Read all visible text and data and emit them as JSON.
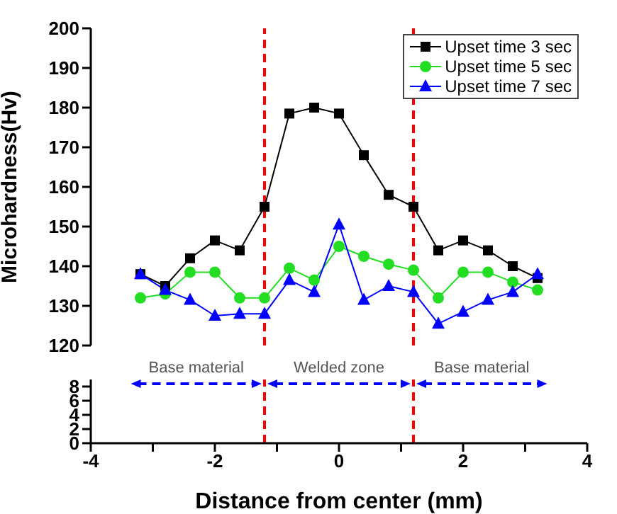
{
  "chart_data": [
    {
      "type": "line",
      "ylabel": "Microhardness(Hv)",
      "xlim": [
        -4,
        4
      ],
      "ylim": [
        120,
        200
      ],
      "yticks": [
        120,
        130,
        140,
        150,
        160,
        170,
        180,
        190,
        200
      ],
      "tick_labels": "y",
      "legend": "top right",
      "x": [
        -3.2,
        -2.8,
        -2.4,
        -2.0,
        -1.6,
        -1.2,
        -0.8,
        -0.4,
        0,
        0.4,
        0.8,
        1.2,
        1.6,
        2.0,
        2.4,
        2.8,
        3.2
      ],
      "series": [
        {
          "name": "Upset time 3 sec",
          "color": "#000000",
          "marker": "square",
          "values": [
            138,
            135,
            142,
            146.5,
            144,
            155,
            178.5,
            180,
            178.5,
            168,
            158,
            155,
            144,
            146.5,
            144,
            140,
            137
          ]
        },
        {
          "name": "Upset time 5 sec",
          "color": "#22dd22",
          "marker": "circle",
          "values": [
            132,
            133,
            138.5,
            138.5,
            132,
            132,
            139.5,
            136.5,
            145,
            142.5,
            140.5,
            139,
            132,
            138.5,
            138.5,
            136,
            134
          ]
        },
        {
          "name": "Upset time 7 sec",
          "color": "#0000ff",
          "marker": "triangle",
          "values": [
            138,
            134,
            131.5,
            127.5,
            128,
            128,
            136.5,
            133.5,
            150.5,
            131.5,
            135,
            133.5,
            125.5,
            128.5,
            131.5,
            133.5,
            138
          ]
        }
      ],
      "ref_lines": [
        {
          "axis": "x",
          "value": -1.2,
          "color": "#ff0000",
          "line_style": "dashed"
        },
        {
          "axis": "x",
          "value": 1.2,
          "color": "#ff0000",
          "line_style": "dashed"
        }
      ]
    },
    {
      "type": "line",
      "xlabel": "Distance from center (mm)",
      "xlim": [
        -4,
        4
      ],
      "xticks": [
        -4,
        {
          "value": -3,
          "label": null
        },
        -2,
        {
          "value": -1,
          "label": null
        },
        0,
        {
          "value": 1,
          "label": null
        },
        2,
        {
          "value": 3,
          "label": null
        },
        4
      ],
      "ylim": [
        0,
        9
      ],
      "yticks": [
        0,
        2,
        4,
        6,
        8
      ],
      "ref_lines": [
        {
          "axis": "x",
          "value": -1.2,
          "color": "#ff0000",
          "line_style": "dashed"
        },
        {
          "axis": "x",
          "value": 1.2,
          "color": "#ff0000",
          "line_style": "dashed"
        }
      ],
      "annotations": [
        "Base material",
        "Welded zone",
        "Base material"
      ]
    }
  ]
}
